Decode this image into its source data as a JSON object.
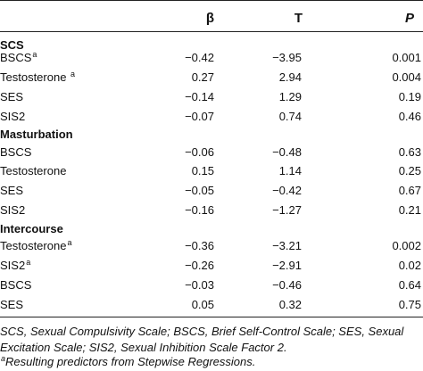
{
  "table": {
    "headers": {
      "beta": "β",
      "t": "T",
      "p": "P"
    },
    "sections": [
      {
        "title": "SCS",
        "rows": [
          {
            "label": "BSCS",
            "sup": "a",
            "beta": "−0.42",
            "t": "−3.95",
            "p": "0.001"
          },
          {
            "label": "Testosterone ",
            "sup": "a",
            "beta": "0.27",
            "t": "2.94",
            "p": "0.004"
          },
          {
            "label": "SES",
            "sup": "",
            "beta": "−0.14",
            "t": "1.29",
            "p": "0.19"
          },
          {
            "label": "SIS2",
            "sup": "",
            "beta": "−0.07",
            "t": "0.74",
            "p": "0.46"
          }
        ]
      },
      {
        "title": "Masturbation",
        "rows": [
          {
            "label": "BSCS",
            "sup": "",
            "beta": "−0.06",
            "t": "−0.48",
            "p": "0.63"
          },
          {
            "label": "Testosterone",
            "sup": "",
            "beta": "0.15",
            "t": "1.14",
            "p": "0.25"
          },
          {
            "label": "SES",
            "sup": "",
            "beta": "−0.05",
            "t": "−0.42",
            "p": "0.67"
          },
          {
            "label": "SIS2",
            "sup": "",
            "beta": "−0.16",
            "t": "−1.27",
            "p": "0.21"
          }
        ]
      },
      {
        "title": "Intercourse",
        "rows": [
          {
            "label": "Testosterone",
            "sup": "a",
            "beta": "−0.36",
            "t": "−3.21",
            "p": "0.002"
          },
          {
            "label": "SIS2",
            "sup": "a",
            "beta": "−0.26",
            "t": "−2.91",
            "p": "0.02"
          },
          {
            "label": "BSCS",
            "sup": "",
            "beta": "−0.03",
            "t": "−0.46",
            "p": "0.64"
          },
          {
            "label": "SES",
            "sup": "",
            "beta": "0.05",
            "t": "0.32",
            "p": "0.75"
          }
        ]
      }
    ]
  },
  "notes": {
    "line1": "SCS, Sexual Compulsivity Scale; BSCS, Brief Self-Control Scale; SES, Sexual",
    "line2": "Excitation Scale; SIS2, Sexual Inhibition Scale Factor 2.",
    "footnote_mark": "a",
    "footnote_text": "Resulting predictors from Stepwise Regressions."
  }
}
